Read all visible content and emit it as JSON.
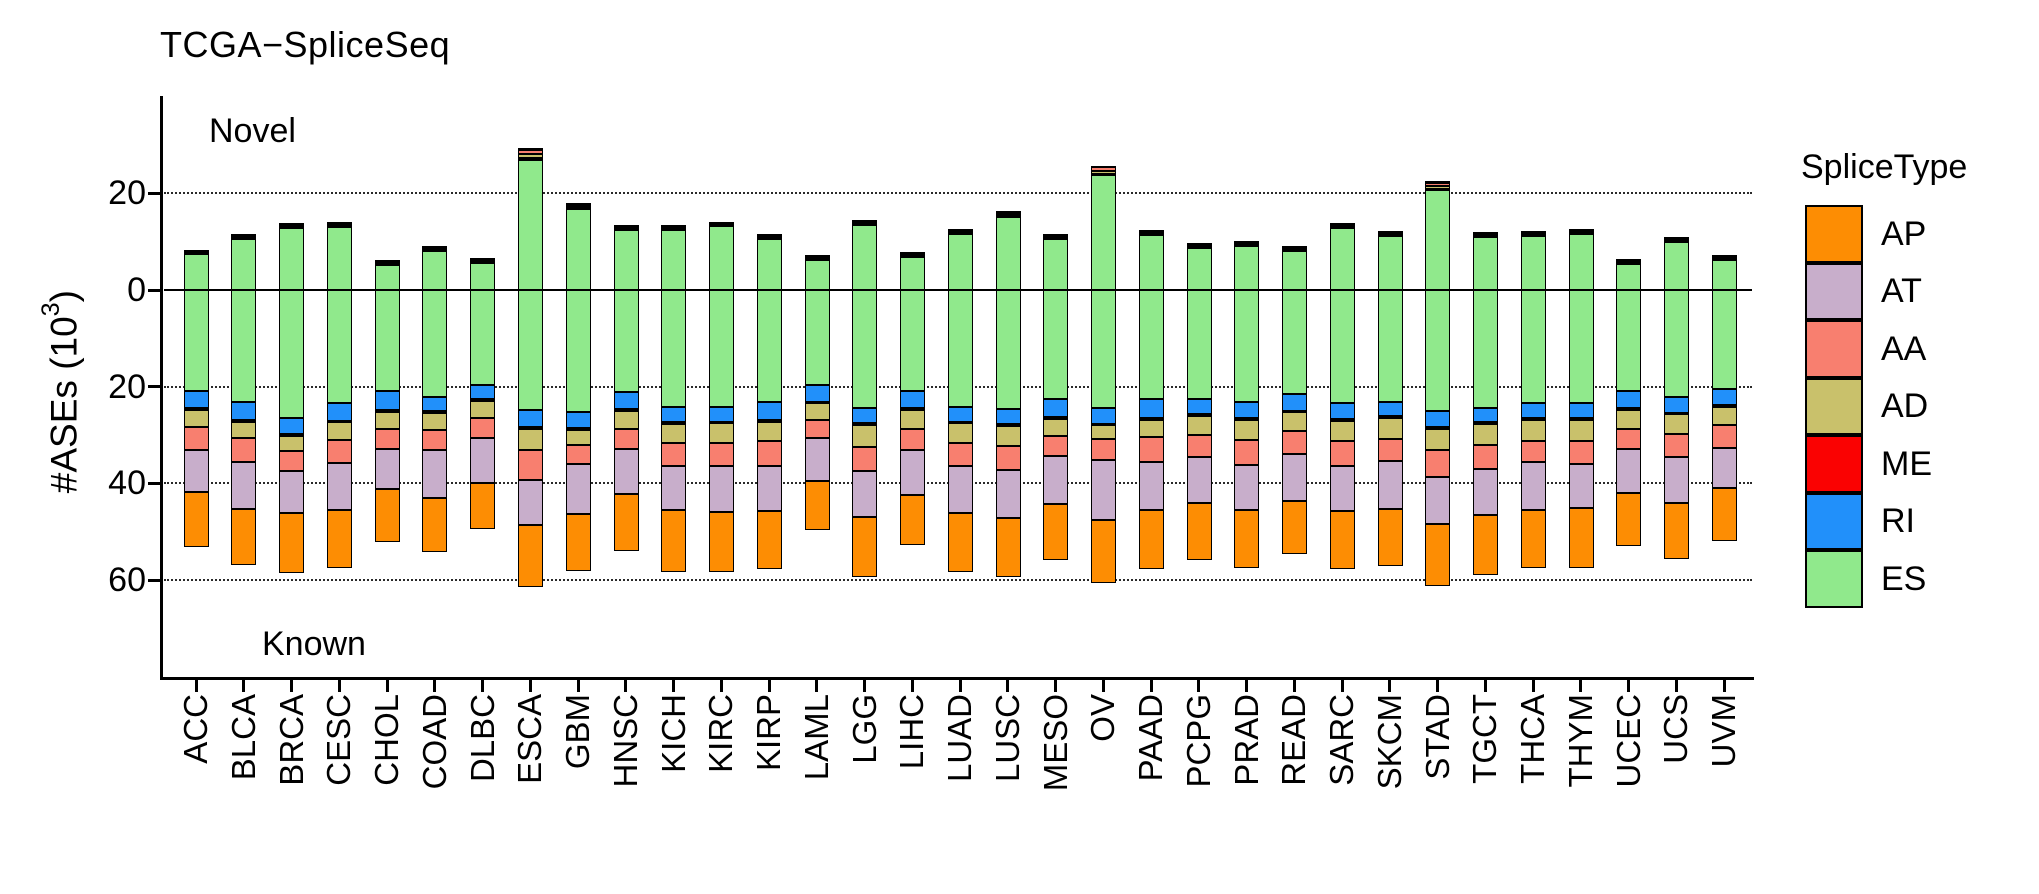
{
  "title": "TCGA−SpliceSeq",
  "annotations": {
    "novel": "Novel",
    "known": "Known"
  },
  "y_axis": {
    "label_pre": "#ASEs (10",
    "label_sup": "3",
    "label_post": ")"
  },
  "legend": {
    "title": "SpliceType",
    "items": [
      {
        "key": "AP",
        "color": "#FD8D03"
      },
      {
        "key": "AT",
        "color": "#C8AECB"
      },
      {
        "key": "AA",
        "color": "#F87F6F"
      },
      {
        "key": "AD",
        "color": "#C9C16B"
      },
      {
        "key": "ME",
        "color": "#FA0202"
      },
      {
        "key": "RI",
        "color": "#2190FA"
      },
      {
        "key": "ES",
        "color": "#90E98C"
      }
    ]
  },
  "chart_data": {
    "type": "bar",
    "variant": "diverging-stacked",
    "title": "TCGA−SpliceSeq",
    "xlabel": "",
    "ylabel": "#ASEs (10^3)",
    "units": "thousands of alternative splicing events",
    "positive_side_label": "Novel",
    "negative_side_label": "Known",
    "stack_order_from_zero": [
      "ES",
      "RI",
      "ME",
      "AD",
      "AA",
      "AT",
      "AP"
    ],
    "colors": {
      "AP": "#FD8D03",
      "AT": "#C8AECB",
      "AA": "#F87F6F",
      "AD": "#C9C16B",
      "ME": "#FA0202",
      "RI": "#2190FA",
      "ES": "#90E98C"
    },
    "y_ticks": [
      {
        "value": 20,
        "label": "20"
      },
      {
        "value": 0,
        "label": "0"
      },
      {
        "value": -20,
        "label": "20"
      },
      {
        "value": -40,
        "label": "40"
      },
      {
        "value": -60,
        "label": "60"
      }
    ],
    "dotted_gridlines_at": [
      20,
      -20,
      -40,
      -60
    ],
    "ylim": [
      -80,
      44
    ],
    "categories": [
      "ACC",
      "BLCA",
      "BRCA",
      "CESC",
      "CHOL",
      "COAD",
      "DLBC",
      "ESCA",
      "GBM",
      "HNSC",
      "KICH",
      "KIRC",
      "KIRP",
      "LAML",
      "LGG",
      "LIHC",
      "LUAD",
      "LUSC",
      "MESO",
      "OV",
      "PAAD",
      "PCPG",
      "PRAD",
      "READ",
      "SARC",
      "SKCM",
      "STAD",
      "TGCT",
      "THCA",
      "THYM",
      "UCEC",
      "UCS",
      "UVM"
    ],
    "novel": {
      "ES": [
        7.4,
        10.6,
        12.9,
        13.1,
        5.2,
        8.2,
        5.7,
        26.9,
        16.8,
        12.4,
        12.4,
        13.2,
        10.7,
        6.2,
        13.6,
        6.9,
        11.7,
        15.2,
        10.7,
        23.8,
        11.4,
        8.8,
        9.2,
        8.2,
        12.8,
        11.2,
        20.7,
        11.1,
        11.3,
        11.6,
        5.4,
        10.0,
        6.3
      ],
      "RI": [
        0.15,
        0.15,
        0.15,
        0.15,
        0.15,
        0.15,
        0.15,
        0.2,
        0.15,
        0.15,
        0.15,
        0.15,
        0.15,
        0.15,
        0.15,
        0.15,
        0.15,
        0.15,
        0.15,
        0.2,
        0.15,
        0.15,
        0.15,
        0.15,
        0.15,
        0.15,
        0.2,
        0.15,
        0.15,
        0.15,
        0.15,
        0.15,
        0.15
      ],
      "ME": [
        0.05,
        0.05,
        0.05,
        0.05,
        0.05,
        0.05,
        0.05,
        0.1,
        0.05,
        0.05,
        0.05,
        0.05,
        0.05,
        0.05,
        0.05,
        0.05,
        0.05,
        0.05,
        0.05,
        0.05,
        0.05,
        0.05,
        0.05,
        0.05,
        0.05,
        0.05,
        0.05,
        0.05,
        0.05,
        0.05,
        0.05,
        0.05,
        0.05
      ],
      "AD": [
        0.25,
        0.25,
        0.25,
        0.25,
        0.25,
        0.25,
        0.25,
        0.9,
        0.3,
        0.25,
        0.25,
        0.25,
        0.25,
        0.25,
        0.25,
        0.25,
        0.25,
        0.3,
        0.25,
        0.6,
        0.25,
        0.25,
        0.25,
        0.25,
        0.25,
        0.25,
        0.5,
        0.25,
        0.25,
        0.25,
        0.25,
        0.25,
        0.25
      ],
      "AA": [
        0.3,
        0.3,
        0.3,
        0.3,
        0.3,
        0.3,
        0.3,
        0.8,
        0.4,
        0.3,
        0.3,
        0.3,
        0.3,
        0.3,
        0.3,
        0.3,
        0.3,
        0.4,
        0.3,
        0.8,
        0.3,
        0.3,
        0.3,
        0.3,
        0.4,
        0.3,
        0.8,
        0.3,
        0.3,
        0.3,
        0.3,
        0.3,
        0.3
      ],
      "AT": [
        0.1,
        0.1,
        0.1,
        0.1,
        0.1,
        0.1,
        0.1,
        0.2,
        0.1,
        0.1,
        0.1,
        0.1,
        0.1,
        0.1,
        0.1,
        0.1,
        0.1,
        0.1,
        0.1,
        0.15,
        0.1,
        0.1,
        0.1,
        0.1,
        0.1,
        0.1,
        0.15,
        0.1,
        0.1,
        0.1,
        0.1,
        0.1,
        0.1
      ],
      "AP": [
        0.1,
        0.1,
        0.1,
        0.1,
        0.1,
        0.1,
        0.1,
        0.2,
        0.1,
        0.1,
        0.1,
        0.1,
        0.1,
        0.1,
        0.1,
        0.1,
        0.1,
        0.1,
        0.1,
        0.1,
        0.1,
        0.1,
        0.1,
        0.1,
        0.1,
        0.1,
        0.1,
        0.1,
        0.1,
        0.1,
        0.1,
        0.1,
        0.1
      ]
    },
    "known": {
      "ES": [
        20.8,
        23.1,
        26.5,
        23.4,
        20.8,
        22.1,
        19.6,
        24.8,
        25.2,
        21.0,
        24.1,
        24.1,
        23.1,
        19.6,
        24.5,
        20.8,
        24.1,
        24.6,
        22.6,
        24.5,
        22.6,
        22.6,
        23.1,
        21.5,
        23.3,
        23.1,
        25.0,
        24.5,
        23.4,
        23.3,
        20.8,
        22.2,
        20.5
      ],
      "RI": [
        3.7,
        3.8,
        3.3,
        3.7,
        4.1,
        3.0,
        3.0,
        3.6,
        3.4,
        3.7,
        3.3,
        3.1,
        3.8,
        3.5,
        3.1,
        3.7,
        3.1,
        3.2,
        3.7,
        3.2,
        3.9,
        3.0,
        3.4,
        3.5,
        3.4,
        3.0,
        3.4,
        2.9,
        3.1,
        3.2,
        3.7,
        3.2,
        3.3
      ],
      "ME": [
        0.3,
        0.3,
        0.3,
        0.3,
        0.3,
        0.3,
        0.3,
        0.3,
        0.3,
        0.3,
        0.3,
        0.4,
        0.3,
        0.3,
        0.4,
        0.3,
        0.4,
        0.3,
        0.3,
        0.3,
        0.3,
        0.4,
        0.3,
        0.3,
        0.3,
        0.4,
        0.4,
        0.3,
        0.4,
        0.3,
        0.3,
        0.3,
        0.3
      ],
      "AD": [
        3.6,
        3.5,
        3.2,
        3.6,
        3.5,
        3.5,
        3.6,
        4.4,
        3.1,
        3.7,
        4.0,
        4.1,
        4.0,
        3.4,
        4.5,
        3.9,
        4.1,
        4.2,
        3.6,
        2.9,
        3.7,
        4.0,
        4.2,
        3.8,
        4.3,
        4.4,
        4.3,
        4.3,
        4.4,
        4.5,
        3.9,
        4.1,
        3.9
      ],
      "AA": [
        4.7,
        4.8,
        4.1,
        4.7,
        4.1,
        4.1,
        4.2,
        6.2,
        4.0,
        4.1,
        4.7,
        4.6,
        5.1,
        3.8,
        5.0,
        4.3,
        4.8,
        4.9,
        4.1,
        4.3,
        5.0,
        4.5,
        5.1,
        4.8,
        5.0,
        4.5,
        5.6,
        5.0,
        4.3,
        4.7,
        4.1,
        4.8,
        4.6
      ],
      "AT": [
        8.6,
        9.7,
        8.8,
        9.7,
        8.3,
        10.1,
        9.3,
        9.3,
        10.4,
        9.4,
        9.2,
        9.6,
        9.4,
        9.0,
        9.4,
        9.3,
        9.7,
        10.0,
        10.0,
        12.4,
        10.0,
        9.5,
        9.4,
        9.7,
        9.5,
        9.8,
        9.8,
        9.5,
        10.0,
        9.1,
        9.2,
        9.5,
        8.4
      ],
      "AP": [
        11.4,
        11.7,
        12.4,
        12.0,
        11.0,
        11.1,
        9.5,
        12.8,
        11.8,
        11.7,
        12.7,
        12.4,
        12.0,
        10.0,
        12.4,
        10.5,
        12.1,
        12.2,
        11.5,
        12.9,
        12.3,
        11.8,
        11.9,
        11.0,
        11.9,
        11.9,
        12.8,
        12.4,
        11.9,
        12.3,
        11.0,
        11.5,
        11.0
      ]
    }
  }
}
